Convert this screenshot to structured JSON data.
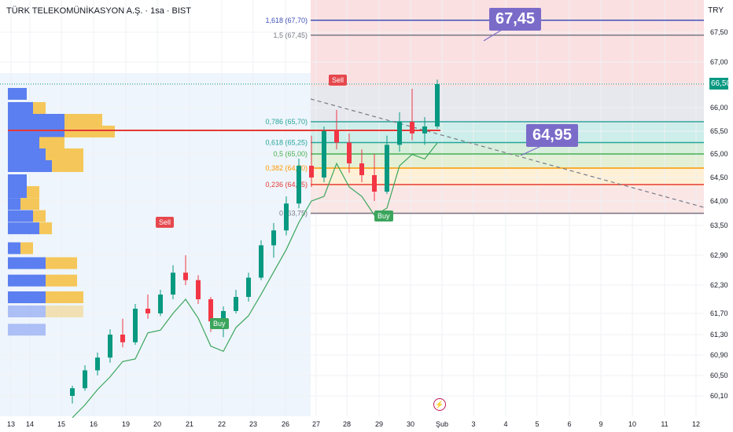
{
  "header": {
    "symbol": "TÜRK TELEKOMÜNİKASYON A.Ş.",
    "interval": "1sa",
    "exchange": "BIST",
    "currency": "TRY"
  },
  "callouts": {
    "target_high": "67,45",
    "target_mid": "64,95"
  },
  "signals": {
    "sell_label": "Sell",
    "buy_label": "Buy"
  },
  "last_price": "66,50",
  "event_icon": "lightning-icon",
  "colors": {
    "candle_up": "#089981",
    "candle_down": "#f23645",
    "fib_blue": "#3f51b5",
    "fib_teal": "#26a69a",
    "fib_green": "#4caf50",
    "fib_orange": "#ff9800",
    "fib_red": "#e53935",
    "fib_gray": "#787b86",
    "volume_blue": "#5b7ff0",
    "volume_yellow": "#f5c75a",
    "callout": "#7b6bc9"
  },
  "chart_data": {
    "type": "candlestick",
    "y_axis_ticks": [
      "67,50",
      "67,00",
      "66,50",
      "66,00",
      "65,50",
      "65,00",
      "64,50",
      "64,00",
      "63,50",
      "62,90",
      "62,30",
      "61,70",
      "61,30",
      "60,90",
      "60,50",
      "60,10"
    ],
    "x_axis_ticks": [
      "13",
      "14",
      "15",
      "16",
      "19",
      "20",
      "21",
      "22",
      "23",
      "26",
      "27",
      "28",
      "29",
      "30",
      "Şub",
      "3",
      "4",
      "5",
      "6",
      "9",
      "10",
      "11",
      "12"
    ],
    "fib_levels": [
      {
        "label": "1,618 (67,70)",
        "value": 67.7,
        "color": "#3f51b5"
      },
      {
        "label": "1,5 (67,45)",
        "value": 67.45,
        "color": "#787b86"
      },
      {
        "label": "0,786 (65,70)",
        "value": 65.7,
        "color": "#26a69a"
      },
      {
        "label": "0,618 (65,25)",
        "value": 65.25,
        "color": "#26a69a"
      },
      {
        "label": "0,5 (65,00)",
        "value": 65.0,
        "color": "#4caf50"
      },
      {
        "label": "0,382 (64,70)",
        "value": 64.7,
        "color": "#ff9800"
      },
      {
        "label": "0,236 (64,35)",
        "value": 64.35,
        "color": "#e53935"
      },
      {
        "label": "0 (63,75)",
        "value": 63.75,
        "color": "#787b86"
      }
    ],
    "volume_profile": [
      {
        "price": 66.3,
        "blue": 3,
        "yellow": 0
      },
      {
        "price": 66.0,
        "blue": 4,
        "yellow": 2
      },
      {
        "price": 65.75,
        "blue": 9,
        "yellow": 6
      },
      {
        "price": 65.5,
        "blue": 9,
        "yellow": 8
      },
      {
        "price": 65.25,
        "blue": 5,
        "yellow": 4
      },
      {
        "price": 65.0,
        "blue": 6,
        "yellow": 6
      },
      {
        "price": 64.75,
        "blue": 7,
        "yellow": 5
      },
      {
        "price": 64.45,
        "blue": 3,
        "yellow": 0
      },
      {
        "price": 64.2,
        "blue": 3,
        "yellow": 2
      },
      {
        "price": 63.95,
        "blue": 2,
        "yellow": 3
      },
      {
        "price": 63.7,
        "blue": 4,
        "yellow": 2
      },
      {
        "price": 63.45,
        "blue": 5,
        "yellow": 2
      },
      {
        "price": 63.05,
        "blue": 2,
        "yellow": 2
      },
      {
        "price": 62.75,
        "blue": 6,
        "yellow": 5
      },
      {
        "price": 62.4,
        "blue": 6,
        "yellow": 5
      },
      {
        "price": 62.05,
        "blue": 6,
        "yellow": 6
      },
      {
        "price": 61.75,
        "blue": 6,
        "yellow": 6
      },
      {
        "price": 61.4,
        "blue": 6,
        "yellow": 0
      }
    ],
    "candles": [
      {
        "o": 60.1,
        "h": 60.3,
        "l": 59.95,
        "c": 60.25
      },
      {
        "o": 60.25,
        "h": 60.7,
        "l": 60.2,
        "c": 60.6
      },
      {
        "o": 60.6,
        "h": 60.95,
        "l": 60.5,
        "c": 60.85
      },
      {
        "o": 60.85,
        "h": 61.4,
        "l": 60.75,
        "c": 61.3
      },
      {
        "o": 61.3,
        "h": 61.6,
        "l": 61.05,
        "c": 61.15
      },
      {
        "o": 61.15,
        "h": 61.9,
        "l": 61.1,
        "c": 61.8
      },
      {
        "o": 61.8,
        "h": 62.1,
        "l": 61.6,
        "c": 61.7
      },
      {
        "o": 61.7,
        "h": 62.2,
        "l": 61.65,
        "c": 62.1
      },
      {
        "o": 62.1,
        "h": 62.7,
        "l": 62.0,
        "c": 62.55
      },
      {
        "o": 62.55,
        "h": 62.9,
        "l": 62.3,
        "c": 62.4
      },
      {
        "o": 62.4,
        "h": 62.5,
        "l": 61.9,
        "c": 62.0
      },
      {
        "o": 62.0,
        "h": 62.05,
        "l": 61.35,
        "c": 61.55
      },
      {
        "o": 61.55,
        "h": 61.85,
        "l": 61.25,
        "c": 61.75
      },
      {
        "o": 61.75,
        "h": 62.2,
        "l": 61.7,
        "c": 62.05
      },
      {
        "o": 62.05,
        "h": 62.55,
        "l": 61.95,
        "c": 62.45
      },
      {
        "o": 62.45,
        "h": 63.2,
        "l": 62.4,
        "c": 63.1
      },
      {
        "o": 63.1,
        "h": 63.55,
        "l": 62.85,
        "c": 63.4
      },
      {
        "o": 63.4,
        "h": 64.1,
        "l": 63.3,
        "c": 63.95
      },
      {
        "o": 63.95,
        "h": 64.9,
        "l": 63.85,
        "c": 64.75
      },
      {
        "o": 64.75,
        "h": 65.4,
        "l": 64.3,
        "c": 64.5
      },
      {
        "o": 64.5,
        "h": 65.6,
        "l": 64.4,
        "c": 65.5
      },
      {
        "o": 65.5,
        "h": 65.95,
        "l": 65.1,
        "c": 65.25
      },
      {
        "o": 65.25,
        "h": 65.45,
        "l": 64.6,
        "c": 64.8
      },
      {
        "o": 64.8,
        "h": 65.1,
        "l": 64.4,
        "c": 64.55
      },
      {
        "o": 64.55,
        "h": 65.0,
        "l": 64.0,
        "c": 64.2
      },
      {
        "o": 64.2,
        "h": 65.4,
        "l": 64.15,
        "c": 65.2
      },
      {
        "o": 65.2,
        "h": 65.9,
        "l": 65.05,
        "c": 65.7
      },
      {
        "o": 65.7,
        "h": 66.4,
        "l": 65.3,
        "c": 65.45
      },
      {
        "o": 65.45,
        "h": 65.8,
        "l": 65.2,
        "c": 65.6
      },
      {
        "o": 65.6,
        "h": 66.6,
        "l": 65.55,
        "c": 66.5
      }
    ],
    "annotations": [
      "67,45",
      "64,95"
    ],
    "last_price": 66.5
  }
}
